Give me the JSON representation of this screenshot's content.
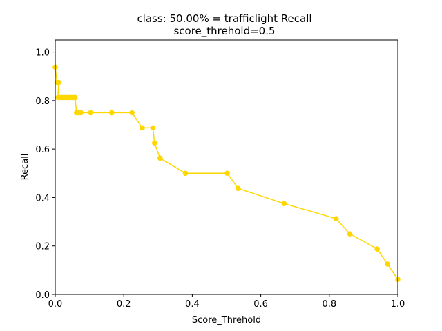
{
  "chart_data": {
    "type": "line",
    "title_line1": "class: 50.00% = trafficlight Recall",
    "title_line2": "score_threhold=0.5",
    "xlabel": "Score_Threhold",
    "ylabel": "Recall",
    "xlim": [
      0.0,
      1.0
    ],
    "ylim": [
      0.0,
      1.05
    ],
    "xticks": [
      "0.0",
      "0.2",
      "0.4",
      "0.6",
      "0.8",
      "1.0"
    ],
    "yticks": [
      "0.0",
      "0.2",
      "0.4",
      "0.6",
      "0.8",
      "1.0"
    ],
    "xtick_values": [
      0.0,
      0.2,
      0.4,
      0.6,
      0.8,
      1.0
    ],
    "ytick_values": [
      0.0,
      0.2,
      0.4,
      0.6,
      0.8,
      1.0
    ],
    "grid": false,
    "series": [
      {
        "color": "#ffd700",
        "marker": "circle",
        "x": [
          0.0,
          0.005,
          0.01,
          0.008,
          0.012,
          0.018,
          0.024,
          0.03,
          0.036,
          0.042,
          0.048,
          0.054,
          0.058,
          0.062,
          0.068,
          0.075,
          0.103,
          0.165,
          0.224,
          0.254,
          0.285,
          0.29,
          0.306,
          0.38,
          0.502,
          0.534,
          0.668,
          0.82,
          0.86,
          0.94,
          0.97,
          1.0
        ],
        "y": [
          0.938,
          0.875,
          0.875,
          0.8125,
          0.8125,
          0.8125,
          0.8125,
          0.8125,
          0.8125,
          0.8125,
          0.8125,
          0.8125,
          0.8125,
          0.75,
          0.75,
          0.75,
          0.75,
          0.75,
          0.75,
          0.6875,
          0.6875,
          0.625,
          0.5625,
          0.5,
          0.5,
          0.4375,
          0.375,
          0.3125,
          0.25,
          0.1875,
          0.125,
          0.0625
        ]
      }
    ]
  }
}
